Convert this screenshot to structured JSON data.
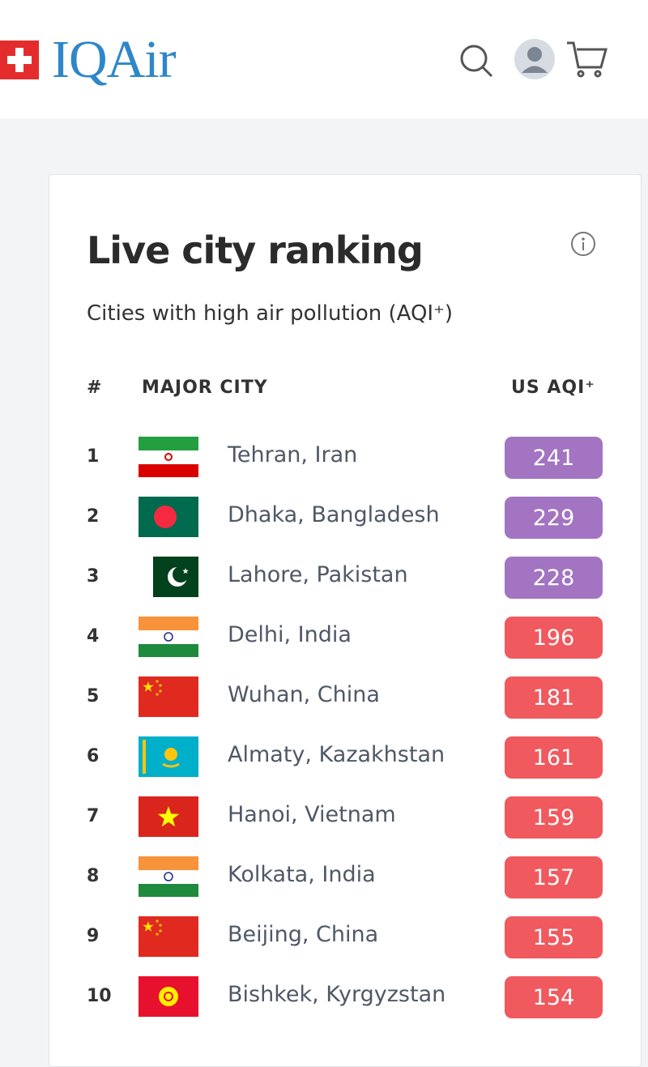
{
  "header": {
    "logo": "IQAir"
  },
  "card": {
    "title": "Live city ranking",
    "subtitle": "Cities with high air pollution (AQI⁺)",
    "table": {
      "columns": [
        "#",
        "MAJOR CITY",
        "US AQI⁺"
      ],
      "rows": [
        {
          "rank": "1",
          "city": "Tehran, Iran",
          "aqi": "241",
          "color": "#a374c2"
        },
        {
          "rank": "2",
          "city": "Dhaka, Bangladesh",
          "aqi": "229",
          "color": "#a374c2"
        },
        {
          "rank": "3",
          "city": "Lahore, Pakistan",
          "aqi": "228",
          "color": "#a374c2"
        },
        {
          "rank": "4",
          "city": "Delhi, India",
          "aqi": "196",
          "color": "#f0595e"
        },
        {
          "rank": "5",
          "city": "Wuhan, China",
          "aqi": "181",
          "color": "#f0595e"
        },
        {
          "rank": "6",
          "city": "Almaty, Kazakhstan",
          "aqi": "161",
          "color": "#f0595e"
        },
        {
          "rank": "7",
          "city": "Hanoi, Vietnam",
          "aqi": "159",
          "color": "#f0595e"
        },
        {
          "rank": "8",
          "city": "Kolkata, India",
          "aqi": "157",
          "color": "#f0595e"
        },
        {
          "rank": "9",
          "city": "Beijing, China",
          "aqi": "155",
          "color": "#f0595e"
        },
        {
          "rank": "10",
          "city": "Bishkek, Kyrgyzstan",
          "aqi": "154",
          "color": "#f0595e"
        }
      ]
    }
  }
}
